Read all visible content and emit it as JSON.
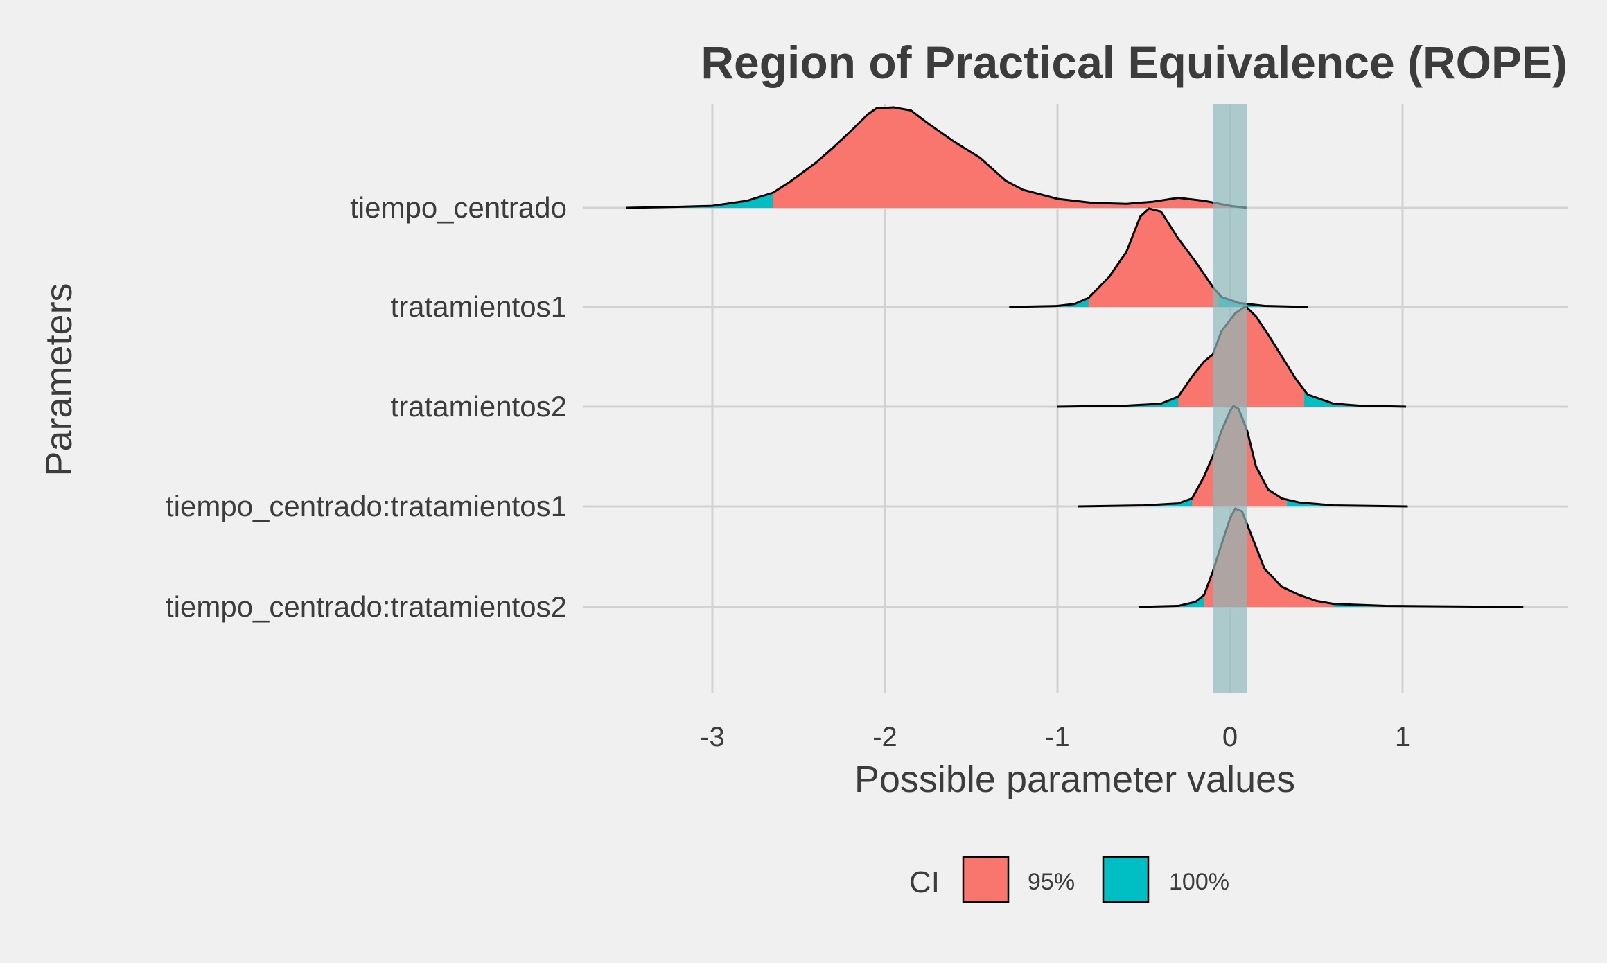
{
  "chart_data": {
    "type": "area",
    "title": "Region of Practical Equivalence (ROPE)",
    "xlabel": "Possible parameter values",
    "ylabel": "Parameters",
    "xlim": [
      -3.8,
      2.0
    ],
    "x_ticks": [
      -3,
      -2,
      -1,
      0,
      1
    ],
    "x_tick_labels": [
      "-3",
      "-2",
      "-1",
      "0",
      "1"
    ],
    "grid": true,
    "legend_position": "bottom",
    "legend_title": "CI",
    "legend": [
      {
        "label": "95%",
        "color": "#f8766d"
      },
      {
        "label": "100%",
        "color": "#00bfc4"
      }
    ],
    "rope": {
      "range": [
        -0.1,
        0.1
      ],
      "color": "#8fb9ba"
    },
    "categories": [
      "tiempo_centrado",
      "tratamientos1",
      "tratamientos2",
      "tiempo_centrado:tratamientos1",
      "tiempo_centrado:tratamientos2"
    ],
    "series": [
      {
        "name": "tiempo_centrado",
        "ci95": [
          -2.65,
          0.0
        ],
        "density": [
          [
            -3.5,
            0
          ],
          [
            -3.2,
            0.01
          ],
          [
            -3.0,
            0.02
          ],
          [
            -2.8,
            0.07
          ],
          [
            -2.65,
            0.15
          ],
          [
            -2.55,
            0.26
          ],
          [
            -2.4,
            0.45
          ],
          [
            -2.3,
            0.6
          ],
          [
            -2.2,
            0.76
          ],
          [
            -2.1,
            0.93
          ],
          [
            -2.05,
            0.99
          ],
          [
            -1.95,
            1.0
          ],
          [
            -1.85,
            0.97
          ],
          [
            -1.75,
            0.84
          ],
          [
            -1.6,
            0.66
          ],
          [
            -1.45,
            0.5
          ],
          [
            -1.3,
            0.27
          ],
          [
            -1.2,
            0.18
          ],
          [
            -1.0,
            0.09
          ],
          [
            -0.8,
            0.05
          ],
          [
            -0.6,
            0.04
          ],
          [
            -0.45,
            0.06
          ],
          [
            -0.3,
            0.1
          ],
          [
            -0.15,
            0.07
          ],
          [
            0.0,
            0.02
          ],
          [
            0.1,
            0.0
          ]
        ]
      },
      {
        "name": "tratamientos1",
        "ci95": [
          -0.82,
          -0.07
        ],
        "density": [
          [
            -1.28,
            0
          ],
          [
            -1.0,
            0.01
          ],
          [
            -0.9,
            0.03
          ],
          [
            -0.82,
            0.09
          ],
          [
            -0.7,
            0.3
          ],
          [
            -0.6,
            0.55
          ],
          [
            -0.52,
            0.9
          ],
          [
            -0.47,
            0.98
          ],
          [
            -0.4,
            0.95
          ],
          [
            -0.3,
            0.68
          ],
          [
            -0.2,
            0.45
          ],
          [
            -0.1,
            0.2
          ],
          [
            -0.05,
            0.1
          ],
          [
            0.05,
            0.04
          ],
          [
            0.2,
            0.01
          ],
          [
            0.45,
            0
          ]
        ]
      },
      {
        "name": "tratamientos2",
        "ci95": [
          -0.3,
          0.43
        ],
        "density": [
          [
            -1.0,
            0
          ],
          [
            -0.6,
            0.01
          ],
          [
            -0.4,
            0.03
          ],
          [
            -0.3,
            0.1
          ],
          [
            -0.22,
            0.3
          ],
          [
            -0.15,
            0.45
          ],
          [
            -0.1,
            0.52
          ],
          [
            -0.05,
            0.75
          ],
          [
            0.03,
            0.93
          ],
          [
            0.09,
            1.0
          ],
          [
            0.15,
            0.9
          ],
          [
            0.22,
            0.72
          ],
          [
            0.3,
            0.5
          ],
          [
            0.38,
            0.28
          ],
          [
            0.45,
            0.12
          ],
          [
            0.6,
            0.03
          ],
          [
            0.75,
            0.01
          ],
          [
            1.02,
            0
          ]
        ]
      },
      {
        "name": "tiempo_centrado:tratamientos1",
        "ci95": [
          -0.22,
          0.33
        ],
        "density": [
          [
            -0.88,
            0
          ],
          [
            -0.5,
            0.01
          ],
          [
            -0.3,
            0.03
          ],
          [
            -0.22,
            0.08
          ],
          [
            -0.15,
            0.3
          ],
          [
            -0.1,
            0.5
          ],
          [
            -0.05,
            0.75
          ],
          [
            0.0,
            0.95
          ],
          [
            0.02,
            1.0
          ],
          [
            0.05,
            0.97
          ],
          [
            0.1,
            0.75
          ],
          [
            0.15,
            0.4
          ],
          [
            0.22,
            0.17
          ],
          [
            0.3,
            0.08
          ],
          [
            0.4,
            0.04
          ],
          [
            0.6,
            0.01
          ],
          [
            1.03,
            0
          ]
        ]
      },
      {
        "name": "tiempo_centrado:tratamientos2",
        "ci95": [
          -0.15,
          0.6
        ],
        "density": [
          [
            -0.53,
            0
          ],
          [
            -0.3,
            0.01
          ],
          [
            -0.2,
            0.05
          ],
          [
            -0.15,
            0.12
          ],
          [
            -0.1,
            0.35
          ],
          [
            -0.05,
            0.62
          ],
          [
            0.0,
            0.88
          ],
          [
            0.03,
            0.98
          ],
          [
            0.07,
            0.95
          ],
          [
            0.12,
            0.73
          ],
          [
            0.2,
            0.38
          ],
          [
            0.3,
            0.2
          ],
          [
            0.4,
            0.12
          ],
          [
            0.5,
            0.06
          ],
          [
            0.6,
            0.03
          ],
          [
            0.9,
            0.01
          ],
          [
            1.7,
            0
          ]
        ]
      }
    ]
  }
}
